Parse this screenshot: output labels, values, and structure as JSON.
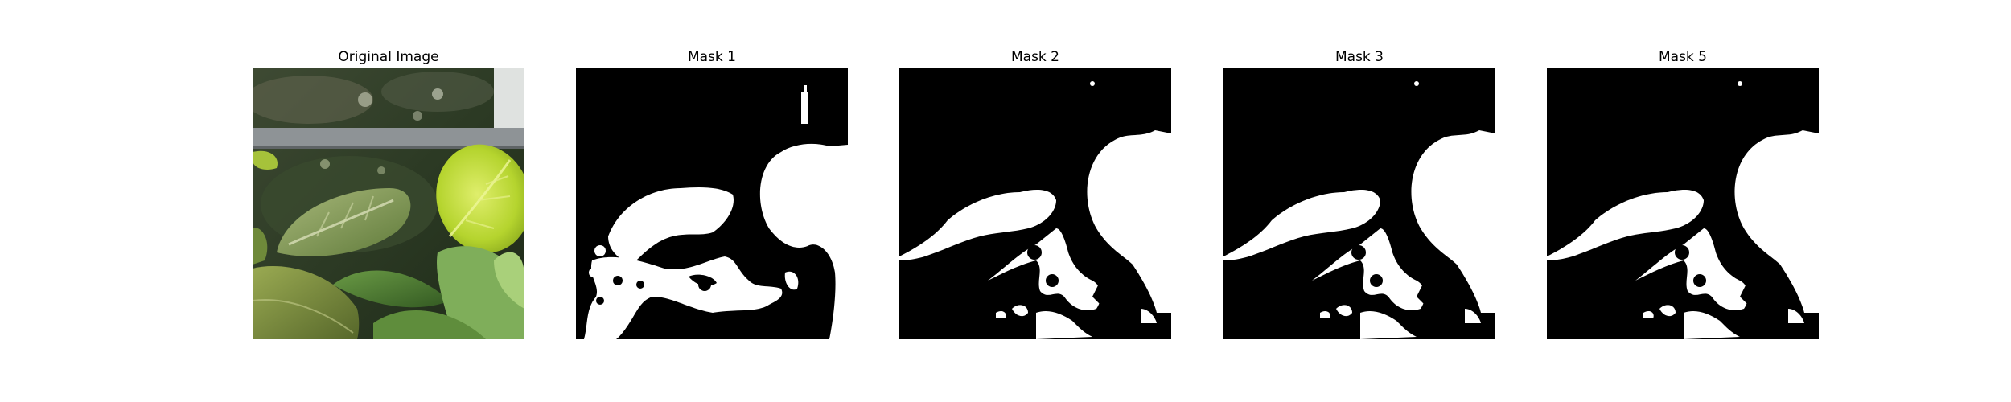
{
  "figure": {
    "panels": [
      {
        "title": "Original Image",
        "kind": "photo"
      },
      {
        "title": "Mask 1",
        "kind": "mask"
      },
      {
        "title": "Mask 2",
        "kind": "mask"
      },
      {
        "title": "Mask 3",
        "kind": "mask"
      },
      {
        "title": "Mask 5",
        "kind": "mask"
      }
    ]
  },
  "colors": {
    "mask_background": "#000000",
    "mask_foreground": "#ffffff",
    "leaf_bright": "#b8d632",
    "leaf_dark": "#4f6b2c",
    "rail_gray": "#8e9396"
  }
}
